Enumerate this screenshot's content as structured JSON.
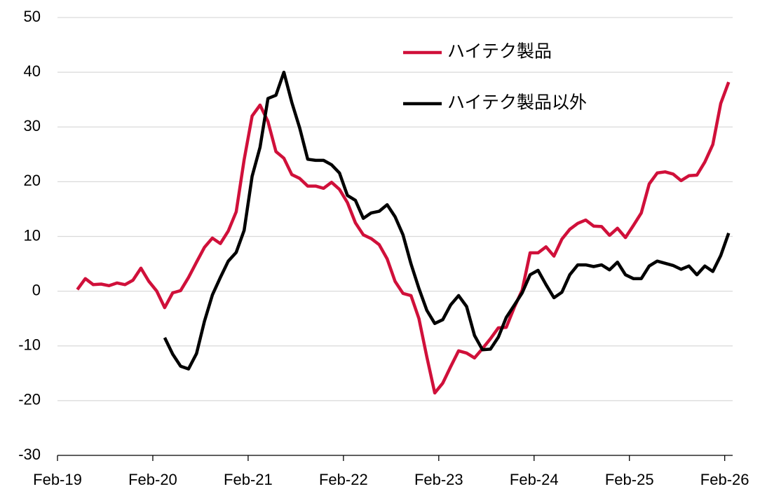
{
  "chart_data": {
    "type": "line",
    "categories": [
      "Feb-19",
      null,
      null,
      null,
      null,
      null,
      null,
      null,
      null,
      null,
      null,
      null,
      "Feb-20",
      null,
      null,
      null,
      null,
      null,
      null,
      null,
      null,
      null,
      null,
      null,
      "Feb-21",
      null,
      null,
      null,
      null,
      null,
      null,
      null,
      null,
      null,
      null,
      null,
      "Feb-22",
      null,
      null,
      null,
      null,
      null,
      null,
      null,
      null,
      null,
      null,
      null,
      "Feb-23",
      null,
      null,
      null,
      null,
      null,
      null,
      null,
      null,
      null,
      null,
      null,
      "Feb-24",
      null,
      null,
      null,
      null,
      null,
      null,
      null,
      null,
      null,
      null,
      null,
      "Feb-25",
      null,
      null,
      null,
      null,
      null,
      null,
      null,
      null,
      null,
      null,
      null,
      "Feb-26"
    ],
    "series": [
      {
        "name": "ハイテク製品",
        "color": "#d0103a",
        "values": [
          null,
          null,
          0.3,
          2.3,
          1.2,
          1.3,
          1.0,
          1.5,
          1.2,
          2.0,
          4.2,
          1.8,
          0,
          -3,
          -0.3,
          0.1,
          2.5,
          5.3,
          8.0,
          9.7,
          8.7,
          11,
          14.5,
          24,
          32,
          34,
          31,
          25.5,
          24.3,
          21.3,
          20.6,
          19.2,
          19.2,
          18.8,
          19.9,
          18.6,
          16.2,
          12.5,
          10.3,
          9.6,
          8.5,
          5.9,
          1.8,
          -0.4,
          -0.8,
          -5,
          -12,
          -18.6,
          -16.8,
          -13.8,
          -10.9,
          -11.3,
          -12.2,
          -10.5,
          -8.7,
          -6.7,
          -6.6,
          -3,
          0.2,
          7.0,
          7.0,
          8.1,
          6.4,
          9.5,
          11.3,
          12.4,
          13.0,
          11.9,
          11.8,
          10.2,
          11.5,
          9.8,
          12,
          14.3,
          19.6,
          21.6,
          21.8,
          21.4,
          20.2,
          21.1,
          21.2,
          23.6,
          26.8,
          34.3,
          38.2
        ]
      },
      {
        "name": "ハイテク製品以外",
        "color": "#000000",
        "values": [
          null,
          null,
          null,
          null,
          null,
          null,
          null,
          null,
          null,
          null,
          null,
          null,
          null,
          -8.5,
          -11.5,
          -13.7,
          -14.2,
          -11.4,
          -5.5,
          -0.7,
          2.5,
          5.5,
          7.1,
          11.1,
          21,
          26.3,
          35.2,
          35.8,
          40,
          34.5,
          29.8,
          24.1,
          23.9,
          23.9,
          23.1,
          21.6,
          17.5,
          16.6,
          13.3,
          14.3,
          14.6,
          15.8,
          13.6,
          10.3,
          5,
          0.5,
          -3.5,
          -5.9,
          -5.2,
          -2.5,
          -0.8,
          -2.8,
          -8.1,
          -10.7,
          -10.6,
          -8.4,
          -4.8,
          -2.6,
          -0.3,
          3,
          3.8,
          1.2,
          -1.2,
          -0.2,
          3,
          4.8,
          4.8,
          4.5,
          4.8,
          3.9,
          5.3,
          3.0,
          2.3,
          2.3,
          4.6,
          5.5,
          5.1,
          4.7,
          4.0,
          4.6,
          3.0,
          4.6,
          3.6,
          6.5,
          10.6
        ]
      }
    ],
    "ylim": [
      -30,
      50
    ],
    "yticks": [
      -30,
      -20,
      -10,
      0,
      10,
      20,
      30,
      40,
      50
    ],
    "grid": true
  }
}
